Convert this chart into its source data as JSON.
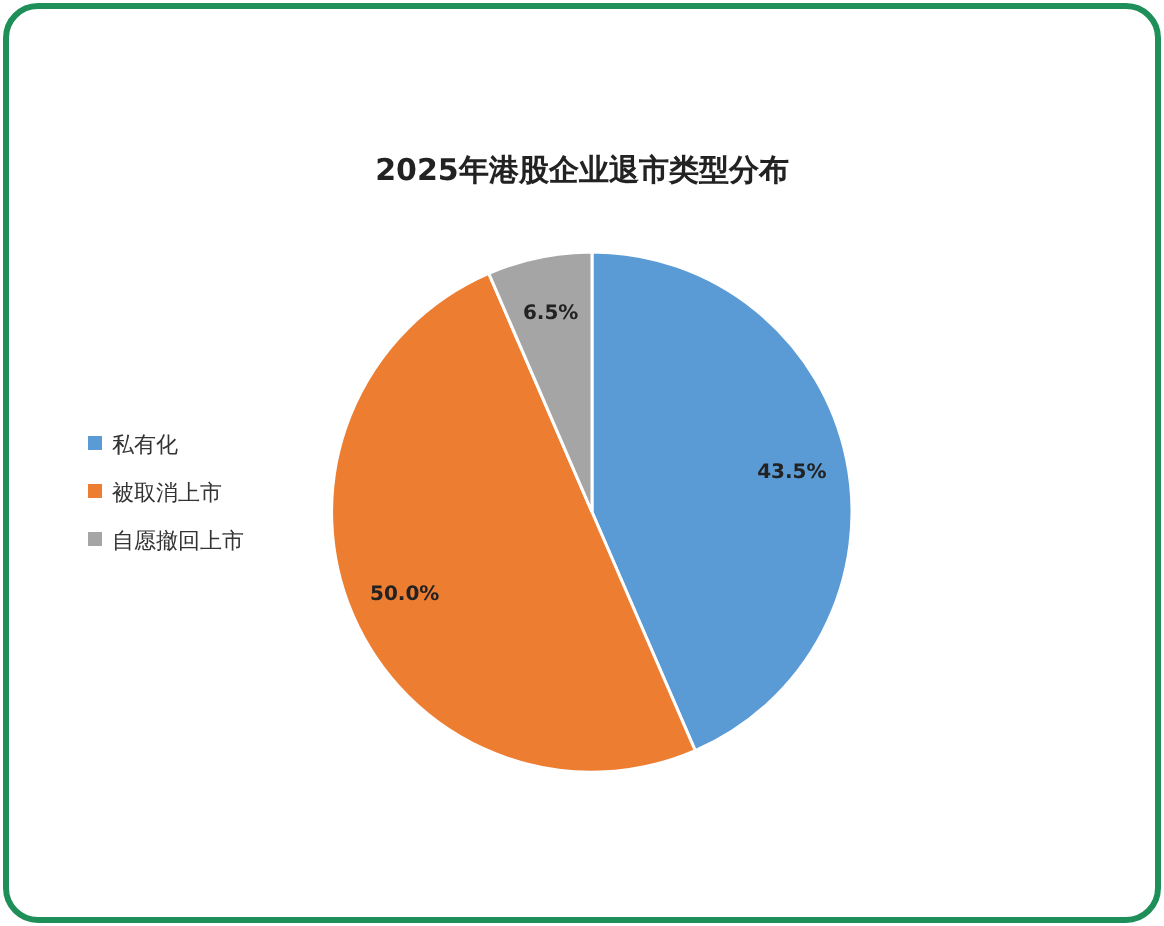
{
  "chart_data": {
    "type": "pie",
    "title": "2025年港股企业退市类型分布",
    "categories": [
      "私有化",
      "被取消上市",
      "自愿撤回上市"
    ],
    "values": [
      43.5,
      50.0,
      6.5
    ],
    "colors": [
      "#5b9bd5",
      "#ed7d31",
      "#a5a5a5"
    ],
    "value_labels": [
      "43.5%",
      "50.0%",
      "6.5%"
    ],
    "legend": "left"
  }
}
